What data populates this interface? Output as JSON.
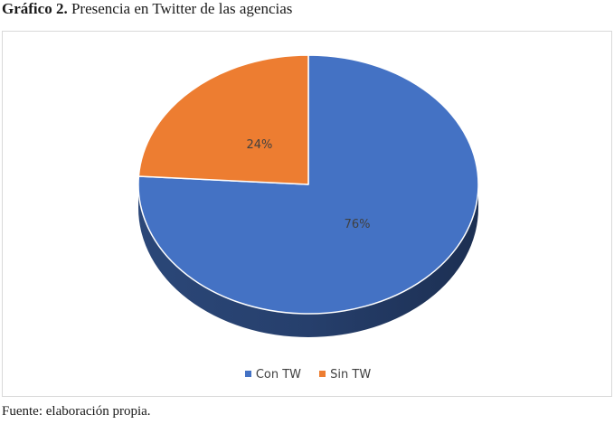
{
  "figure": {
    "label": "Gráfico 2.",
    "title": "Presencia en Twitter de las agencias",
    "source": "Fuente: elaboración propia."
  },
  "chart_data": {
    "type": "pie",
    "title": "",
    "categories": [
      "Con TW",
      "Sin TW"
    ],
    "values": [
      76,
      24
    ],
    "data_labels": [
      "76%",
      "24%"
    ],
    "colors": [
      "#4472c4",
      "#ed7d31"
    ],
    "legend_position": "bottom",
    "style": "3d-tilted"
  }
}
